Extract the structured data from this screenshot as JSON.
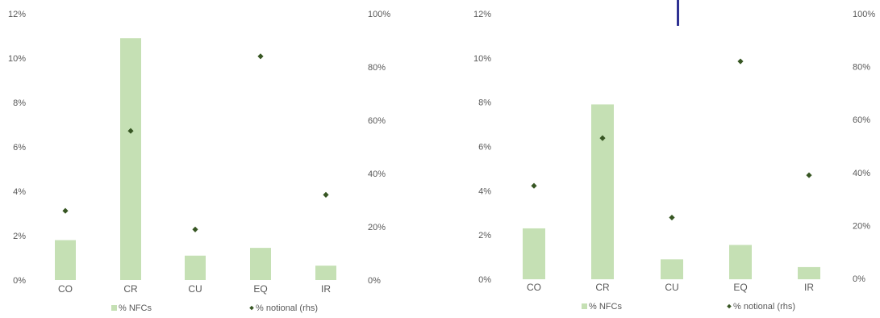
{
  "colors": {
    "bar": "#c5e0b4",
    "marker": "#375623",
    "text": "#595959",
    "divider": "#2e3192"
  },
  "chart_data": [
    {
      "type": "bar",
      "categories": [
        "CO",
        "CR",
        "CU",
        "EQ",
        "IR"
      ],
      "series": [
        {
          "name": "% NFCs",
          "type": "bar",
          "axis": "left",
          "values": [
            1.8,
            10.9,
            1.1,
            1.45,
            0.65
          ]
        },
        {
          "name": "% notional (rhs)",
          "type": "scatter",
          "axis": "right",
          "values": [
            26,
            56,
            19,
            84,
            32
          ]
        }
      ],
      "y_left": {
        "min": 0,
        "max": 12,
        "ticks": [
          "0%",
          "2%",
          "4%",
          "6%",
          "8%",
          "10%",
          "12%"
        ]
      },
      "y_right": {
        "min": 0,
        "max": 100,
        "ticks": [
          "0%",
          "20%",
          "40%",
          "60%",
          "80%",
          "100%"
        ]
      },
      "legend_position": "bottom",
      "grid": false
    },
    {
      "type": "bar",
      "categories": [
        "CO",
        "CR",
        "CU",
        "EQ",
        "IR"
      ],
      "series": [
        {
          "name": "% NFCs",
          "type": "bar",
          "axis": "left",
          "values": [
            2.3,
            7.9,
            0.9,
            1.55,
            0.55
          ]
        },
        {
          "name": "% notional (rhs)",
          "type": "scatter",
          "axis": "right",
          "values": [
            35,
            53,
            23,
            82,
            39
          ]
        }
      ],
      "y_left": {
        "min": 0,
        "max": 12,
        "ticks": [
          "0%",
          "2%",
          "4%",
          "6%",
          "8%",
          "10%",
          "12%"
        ]
      },
      "y_right": {
        "min": 0,
        "max": 100,
        "ticks": [
          "0%",
          "20%",
          "40%",
          "60%",
          "80%",
          "100%"
        ]
      },
      "legend_position": "bottom",
      "grid": false
    }
  ]
}
